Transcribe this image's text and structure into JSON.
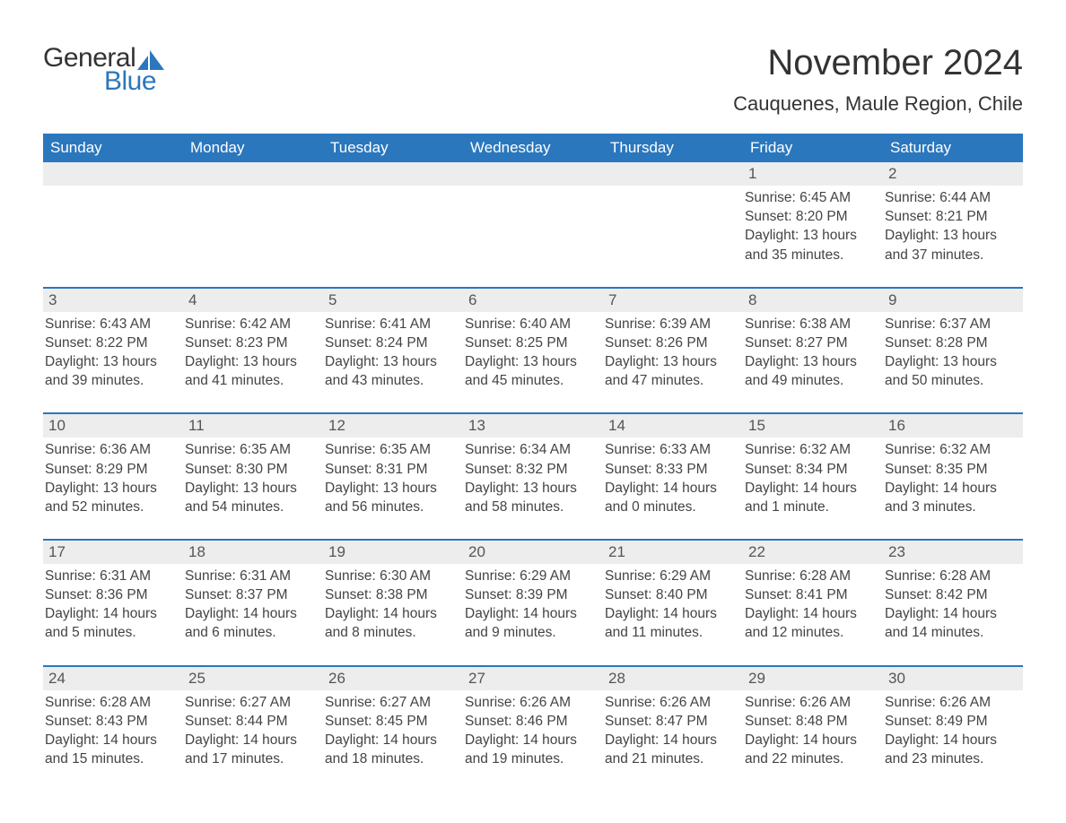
{
  "brand": {
    "general": "General",
    "blue": "Blue",
    "accent": "#2b77bd"
  },
  "title": "November 2024",
  "location": "Cauquenes, Maule Region, Chile",
  "weekday_headers": [
    "Sunday",
    "Monday",
    "Tuesday",
    "Wednesday",
    "Thursday",
    "Friday",
    "Saturday"
  ],
  "style": {
    "header_bg": "#2b77bd",
    "header_fg": "#ffffff",
    "row_border": "#2b77bd",
    "daybar_bg": "#ededed",
    "text_color": "#444444",
    "title_fontsize": 40,
    "location_fontsize": 22,
    "header_fontsize": 17,
    "cell_fontsize": 15.5
  },
  "weeks": [
    [
      {
        "blank": true
      },
      {
        "blank": true
      },
      {
        "blank": true
      },
      {
        "blank": true
      },
      {
        "blank": true
      },
      {
        "n": "1",
        "sunrise": "Sunrise: 6:45 AM",
        "sunset": "Sunset: 8:20 PM",
        "d1": "Daylight: 13 hours",
        "d2": "and 35 minutes."
      },
      {
        "n": "2",
        "sunrise": "Sunrise: 6:44 AM",
        "sunset": "Sunset: 8:21 PM",
        "d1": "Daylight: 13 hours",
        "d2": "and 37 minutes."
      }
    ],
    [
      {
        "n": "3",
        "sunrise": "Sunrise: 6:43 AM",
        "sunset": "Sunset: 8:22 PM",
        "d1": "Daylight: 13 hours",
        "d2": "and 39 minutes."
      },
      {
        "n": "4",
        "sunrise": "Sunrise: 6:42 AM",
        "sunset": "Sunset: 8:23 PM",
        "d1": "Daylight: 13 hours",
        "d2": "and 41 minutes."
      },
      {
        "n": "5",
        "sunrise": "Sunrise: 6:41 AM",
        "sunset": "Sunset: 8:24 PM",
        "d1": "Daylight: 13 hours",
        "d2": "and 43 minutes."
      },
      {
        "n": "6",
        "sunrise": "Sunrise: 6:40 AM",
        "sunset": "Sunset: 8:25 PM",
        "d1": "Daylight: 13 hours",
        "d2": "and 45 minutes."
      },
      {
        "n": "7",
        "sunrise": "Sunrise: 6:39 AM",
        "sunset": "Sunset: 8:26 PM",
        "d1": "Daylight: 13 hours",
        "d2": "and 47 minutes."
      },
      {
        "n": "8",
        "sunrise": "Sunrise: 6:38 AM",
        "sunset": "Sunset: 8:27 PM",
        "d1": "Daylight: 13 hours",
        "d2": "and 49 minutes."
      },
      {
        "n": "9",
        "sunrise": "Sunrise: 6:37 AM",
        "sunset": "Sunset: 8:28 PM",
        "d1": "Daylight: 13 hours",
        "d2": "and 50 minutes."
      }
    ],
    [
      {
        "n": "10",
        "sunrise": "Sunrise: 6:36 AM",
        "sunset": "Sunset: 8:29 PM",
        "d1": "Daylight: 13 hours",
        "d2": "and 52 minutes."
      },
      {
        "n": "11",
        "sunrise": "Sunrise: 6:35 AM",
        "sunset": "Sunset: 8:30 PM",
        "d1": "Daylight: 13 hours",
        "d2": "and 54 minutes."
      },
      {
        "n": "12",
        "sunrise": "Sunrise: 6:35 AM",
        "sunset": "Sunset: 8:31 PM",
        "d1": "Daylight: 13 hours",
        "d2": "and 56 minutes."
      },
      {
        "n": "13",
        "sunrise": "Sunrise: 6:34 AM",
        "sunset": "Sunset: 8:32 PM",
        "d1": "Daylight: 13 hours",
        "d2": "and 58 minutes."
      },
      {
        "n": "14",
        "sunrise": "Sunrise: 6:33 AM",
        "sunset": "Sunset: 8:33 PM",
        "d1": "Daylight: 14 hours",
        "d2": "and 0 minutes."
      },
      {
        "n": "15",
        "sunrise": "Sunrise: 6:32 AM",
        "sunset": "Sunset: 8:34 PM",
        "d1": "Daylight: 14 hours",
        "d2": "and 1 minute."
      },
      {
        "n": "16",
        "sunrise": "Sunrise: 6:32 AM",
        "sunset": "Sunset: 8:35 PM",
        "d1": "Daylight: 14 hours",
        "d2": "and 3 minutes."
      }
    ],
    [
      {
        "n": "17",
        "sunrise": "Sunrise: 6:31 AM",
        "sunset": "Sunset: 8:36 PM",
        "d1": "Daylight: 14 hours",
        "d2": "and 5 minutes."
      },
      {
        "n": "18",
        "sunrise": "Sunrise: 6:31 AM",
        "sunset": "Sunset: 8:37 PM",
        "d1": "Daylight: 14 hours",
        "d2": "and 6 minutes."
      },
      {
        "n": "19",
        "sunrise": "Sunrise: 6:30 AM",
        "sunset": "Sunset: 8:38 PM",
        "d1": "Daylight: 14 hours",
        "d2": "and 8 minutes."
      },
      {
        "n": "20",
        "sunrise": "Sunrise: 6:29 AM",
        "sunset": "Sunset: 8:39 PM",
        "d1": "Daylight: 14 hours",
        "d2": "and 9 minutes."
      },
      {
        "n": "21",
        "sunrise": "Sunrise: 6:29 AM",
        "sunset": "Sunset: 8:40 PM",
        "d1": "Daylight: 14 hours",
        "d2": "and 11 minutes."
      },
      {
        "n": "22",
        "sunrise": "Sunrise: 6:28 AM",
        "sunset": "Sunset: 8:41 PM",
        "d1": "Daylight: 14 hours",
        "d2": "and 12 minutes."
      },
      {
        "n": "23",
        "sunrise": "Sunrise: 6:28 AM",
        "sunset": "Sunset: 8:42 PM",
        "d1": "Daylight: 14 hours",
        "d2": "and 14 minutes."
      }
    ],
    [
      {
        "n": "24",
        "sunrise": "Sunrise: 6:28 AM",
        "sunset": "Sunset: 8:43 PM",
        "d1": "Daylight: 14 hours",
        "d2": "and 15 minutes."
      },
      {
        "n": "25",
        "sunrise": "Sunrise: 6:27 AM",
        "sunset": "Sunset: 8:44 PM",
        "d1": "Daylight: 14 hours",
        "d2": "and 17 minutes."
      },
      {
        "n": "26",
        "sunrise": "Sunrise: 6:27 AM",
        "sunset": "Sunset: 8:45 PM",
        "d1": "Daylight: 14 hours",
        "d2": "and 18 minutes."
      },
      {
        "n": "27",
        "sunrise": "Sunrise: 6:26 AM",
        "sunset": "Sunset: 8:46 PM",
        "d1": "Daylight: 14 hours",
        "d2": "and 19 minutes."
      },
      {
        "n": "28",
        "sunrise": "Sunrise: 6:26 AM",
        "sunset": "Sunset: 8:47 PM",
        "d1": "Daylight: 14 hours",
        "d2": "and 21 minutes."
      },
      {
        "n": "29",
        "sunrise": "Sunrise: 6:26 AM",
        "sunset": "Sunset: 8:48 PM",
        "d1": "Daylight: 14 hours",
        "d2": "and 22 minutes."
      },
      {
        "n": "30",
        "sunrise": "Sunrise: 6:26 AM",
        "sunset": "Sunset: 8:49 PM",
        "d1": "Daylight: 14 hours",
        "d2": "and 23 minutes."
      }
    ]
  ]
}
